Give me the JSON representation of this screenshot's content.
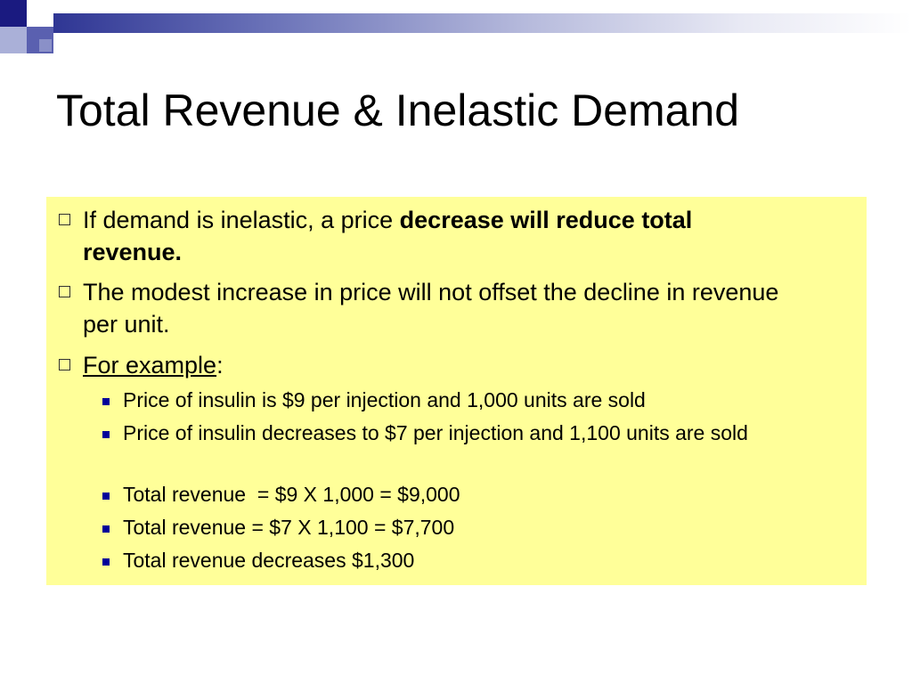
{
  "title": "Total Revenue & Inelastic Demand",
  "colors": {
    "accent_dark": "#1a1a80",
    "accent_mid": "#5a60b0",
    "accent_light": "#aab0d8",
    "content_bg": "#ffff99",
    "sub_bullet": "#000099"
  },
  "bullets": [
    {
      "text_plain": "If demand is inelastic, a price ",
      "text_bold": "decrease will reduce total revenue."
    },
    {
      "text": "The modest increase in price will not offset the decline in revenue per unit."
    },
    {
      "text_underlined": "For example",
      "text_suffix": ":"
    }
  ],
  "sub_bullets": [
    "Price of insulin is $9 per injection and 1,000 units are sold",
    "Price of insulin decreases to $7 per injection and 1,100 units are sold",
    "Total revenue  = $9 X 1,000 = $9,000",
    "Total revenue = $7 X 1,100 = $7,700",
    "Total revenue decreases $1,300"
  ]
}
